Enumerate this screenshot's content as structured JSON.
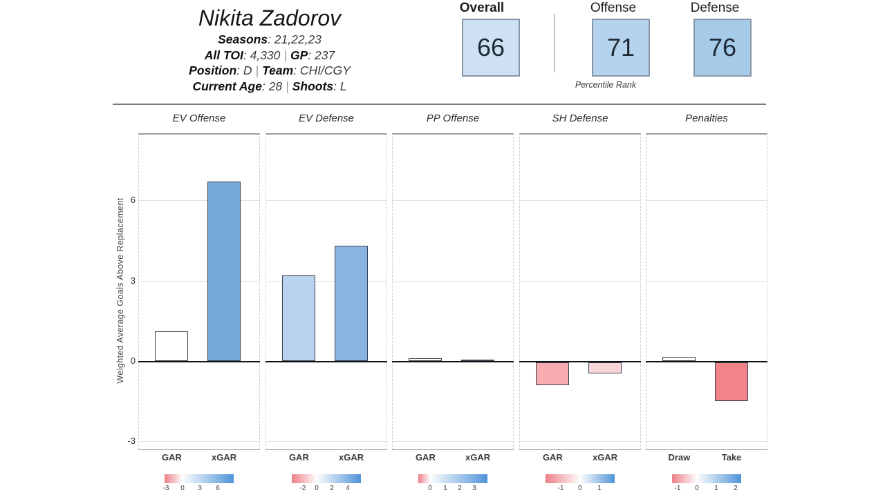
{
  "player": {
    "name": "Nikita Zadorov",
    "colon": ": ",
    "separator": "|",
    "seasons_label": "Seasons",
    "seasons": "21,22,23",
    "toi_label": "All TOI",
    "toi": "4,330",
    "gp_label": "GP",
    "gp": "237",
    "position_label": "Position",
    "position": "D",
    "team_label": "Team",
    "team": "CHI/CGY",
    "age_label": "Current Age",
    "age": "28",
    "shoots_label": "Shoots",
    "shoots": "L"
  },
  "percentiles": {
    "caption": "Percentile Rank",
    "boxes": [
      {
        "label": "Overall",
        "value": "66",
        "fill": "#cde1f2"
      },
      {
        "label": "Offense",
        "value": "71",
        "fill": "#b5d3ed"
      },
      {
        "label": "Defense",
        "value": "76",
        "fill": "#a6cbe9"
      }
    ]
  },
  "chart_data": {
    "type": "bar",
    "ylabel": "Weighted Average Goals Above Replacement",
    "ylim": [
      -3.3,
      8.5
    ],
    "yticks": [
      6,
      3,
      0,
      -3
    ],
    "grid_vals": [
      6,
      3,
      -3
    ],
    "legend_red": "#ec7f87",
    "legend_blue": "#4f94d8",
    "panels": [
      {
        "title": "EV Offense",
        "categories": [
          "GAR",
          "xGAR"
        ],
        "values": [
          1.1,
          6.7
        ],
        "fills": [
          "#ffffff",
          "#76a8da"
        ],
        "legend": {
          "white_pos": 26,
          "ticks": [
            {
              "label": "-3",
              "pos": 2
            },
            {
              "label": "0",
              "pos": 26
            },
            {
              "label": "3",
              "pos": 51
            },
            {
              "label": "6",
              "pos": 77
            }
          ]
        }
      },
      {
        "title": "EV Defense",
        "categories": [
          "GAR",
          "xGAR"
        ],
        "values": [
          3.2,
          4.3
        ],
        "fills": [
          "#b7d3ed",
          "#8ab4e0"
        ],
        "legend": {
          "white_pos": 36,
          "ticks": [
            {
              "label": "-2",
              "pos": 16
            },
            {
              "label": "0",
              "pos": 36
            },
            {
              "label": "2",
              "pos": 58
            },
            {
              "label": "4",
              "pos": 81
            }
          ]
        }
      },
      {
        "title": "PP Offense",
        "categories": [
          "GAR",
          "xGAR"
        ],
        "values": [
          0.1,
          0.05
        ],
        "fills": [
          "#fbfcfd",
          "#e9eef4"
        ],
        "legend": {
          "white_pos": 17,
          "ticks": [
            {
              "label": "0",
              "pos": 17
            },
            {
              "label": "1",
              "pos": 39
            },
            {
              "label": "2",
              "pos": 60
            },
            {
              "label": "3",
              "pos": 81
            }
          ]
        }
      },
      {
        "title": "SH Defense",
        "categories": [
          "GAR",
          "xGAR"
        ],
        "values": [
          -0.85,
          -0.4
        ],
        "fills": [
          "#f6acb1",
          "#f9d5d7"
        ],
        "legend": {
          "white_pos": 50,
          "ticks": [
            {
              "label": "-1",
              "pos": 22
            },
            {
              "label": "0",
              "pos": 50
            },
            {
              "label": "1",
              "pos": 78
            }
          ]
        }
      },
      {
        "title": "Penalties",
        "categories": [
          "Draw",
          "Take"
        ],
        "values": [
          0.15,
          -1.45
        ],
        "fills": [
          "#ffffff",
          "#f1838b"
        ],
        "legend": {
          "white_pos": 36,
          "ticks": [
            {
              "label": "-1",
              "pos": 8
            },
            {
              "label": "0",
              "pos": 36
            },
            {
              "label": "1",
              "pos": 64
            },
            {
              "label": "2",
              "pos": 92
            }
          ]
        }
      }
    ]
  }
}
